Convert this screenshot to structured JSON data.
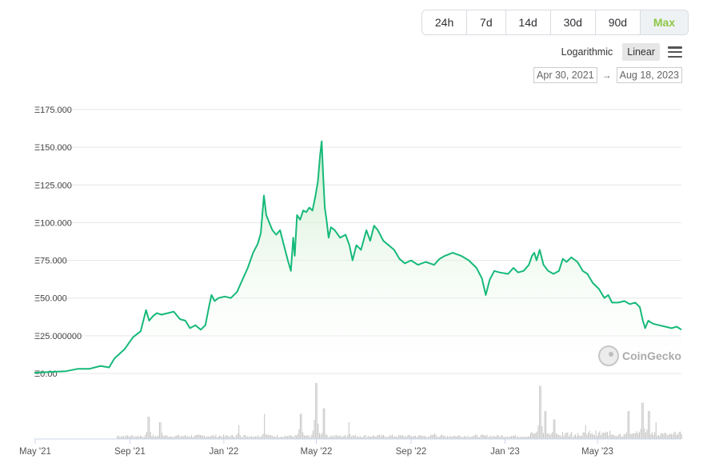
{
  "controls": {
    "ranges": [
      {
        "label": "24h",
        "active": false
      },
      {
        "label": "7d",
        "active": false
      },
      {
        "label": "14d",
        "active": false
      },
      {
        "label": "30d",
        "active": false
      },
      {
        "label": "90d",
        "active": false
      },
      {
        "label": "Max",
        "active": true
      }
    ],
    "scale_log": "Logarithmic",
    "scale_linear": "Linear",
    "date_from": "Apr 30, 2021",
    "date_arrow": "→",
    "date_to": "Aug 18, 2023"
  },
  "watermark": "CoinGecko",
  "colors": {
    "line": "#16b979",
    "fill_top": "#c9ecc9",
    "volume": "#c8c8c8",
    "active_range": "#8dc647"
  },
  "chart_data": {
    "type": "area",
    "ytick_labels": [
      "Ξ0.00",
      "Ξ25.000000",
      "Ξ50.000",
      "Ξ75.000",
      "Ξ100.000",
      "Ξ125.000",
      "Ξ150.000",
      "Ξ175.000"
    ],
    "ytick_values": [
      0,
      25,
      50,
      75,
      100,
      125,
      150,
      175
    ],
    "ylim": [
      0,
      175
    ],
    "xtick_labels": [
      "May '21",
      "Sep '21",
      "Jan '22",
      "May '22",
      "Sep '22",
      "Jan '23",
      "May '23"
    ],
    "xtick_dates": [
      "2021-05-01",
      "2021-09-01",
      "2022-01-01",
      "2022-05-01",
      "2022-09-01",
      "2023-01-01",
      "2023-05-01"
    ],
    "xlim": [
      "2021-04-30",
      "2023-08-18"
    ],
    "grid": true,
    "series": [
      {
        "values": [
          [
            "2021-04-30",
            0.5
          ],
          [
            "2021-05-20",
            1
          ],
          [
            "2021-06-10",
            1.5
          ],
          [
            "2021-06-25",
            3
          ],
          [
            "2021-07-10",
            3
          ],
          [
            "2021-07-25",
            5
          ],
          [
            "2021-08-05",
            4
          ],
          [
            "2021-08-12",
            10
          ],
          [
            "2021-08-25",
            16
          ],
          [
            "2021-09-05",
            24
          ],
          [
            "2021-09-15",
            28
          ],
          [
            "2021-09-22",
            42
          ],
          [
            "2021-09-26",
            35
          ],
          [
            "2021-10-01",
            38
          ],
          [
            "2021-10-06",
            40
          ],
          [
            "2021-10-12",
            39
          ],
          [
            "2021-10-20",
            40
          ],
          [
            "2021-10-28",
            41
          ],
          [
            "2021-11-05",
            36
          ],
          [
            "2021-11-12",
            35
          ],
          [
            "2021-11-18",
            30
          ],
          [
            "2021-11-25",
            32
          ],
          [
            "2021-12-02",
            29
          ],
          [
            "2021-12-08",
            32
          ],
          [
            "2021-12-13",
            45
          ],
          [
            "2021-12-16",
            52
          ],
          [
            "2021-12-20",
            48
          ],
          [
            "2021-12-25",
            50
          ],
          [
            "2022-01-02",
            51
          ],
          [
            "2022-01-10",
            50
          ],
          [
            "2022-01-18",
            54
          ],
          [
            "2022-01-25",
            62
          ],
          [
            "2022-02-01",
            70
          ],
          [
            "2022-02-08",
            80
          ],
          [
            "2022-02-14",
            86
          ],
          [
            "2022-02-18",
            93
          ],
          [
            "2022-02-22",
            118
          ],
          [
            "2022-02-25",
            105
          ],
          [
            "2022-03-01",
            100
          ],
          [
            "2022-03-05",
            95
          ],
          [
            "2022-03-10",
            92
          ],
          [
            "2022-03-15",
            95
          ],
          [
            "2022-03-20",
            85
          ],
          [
            "2022-03-25",
            75
          ],
          [
            "2022-03-29",
            68
          ],
          [
            "2022-04-01",
            90
          ],
          [
            "2022-04-03",
            78
          ],
          [
            "2022-04-06",
            105
          ],
          [
            "2022-04-10",
            102
          ],
          [
            "2022-04-14",
            108
          ],
          [
            "2022-04-18",
            107
          ],
          [
            "2022-04-22",
            110
          ],
          [
            "2022-04-26",
            108
          ],
          [
            "2022-04-30",
            118
          ],
          [
            "2022-05-03",
            127
          ],
          [
            "2022-05-06",
            145
          ],
          [
            "2022-05-08",
            154
          ],
          [
            "2022-05-10",
            130
          ],
          [
            "2022-05-12",
            110
          ],
          [
            "2022-05-14",
            103
          ],
          [
            "2022-05-17",
            90
          ],
          [
            "2022-05-20",
            97
          ],
          [
            "2022-05-25",
            95
          ],
          [
            "2022-06-01",
            90
          ],
          [
            "2022-06-08",
            92
          ],
          [
            "2022-06-13",
            85
          ],
          [
            "2022-06-17",
            75
          ],
          [
            "2022-06-22",
            85
          ],
          [
            "2022-06-28",
            82
          ],
          [
            "2022-07-05",
            95
          ],
          [
            "2022-07-10",
            88
          ],
          [
            "2022-07-15",
            98
          ],
          [
            "2022-07-20",
            95
          ],
          [
            "2022-07-27",
            88
          ],
          [
            "2022-08-03",
            85
          ],
          [
            "2022-08-10",
            82
          ],
          [
            "2022-08-17",
            76
          ],
          [
            "2022-08-24",
            73
          ],
          [
            "2022-09-01",
            75
          ],
          [
            "2022-09-10",
            72
          ],
          [
            "2022-09-20",
            74
          ],
          [
            "2022-10-01",
            72
          ],
          [
            "2022-10-08",
            76
          ],
          [
            "2022-10-15",
            78
          ],
          [
            "2022-10-25",
            80
          ],
          [
            "2022-11-05",
            78
          ],
          [
            "2022-11-15",
            75
          ],
          [
            "2022-11-25",
            70
          ],
          [
            "2022-12-02",
            63
          ],
          [
            "2022-12-07",
            52
          ],
          [
            "2022-12-12",
            62
          ],
          [
            "2022-12-18",
            68
          ],
          [
            "2022-12-25",
            67
          ],
          [
            "2023-01-05",
            66
          ],
          [
            "2023-01-12",
            70
          ],
          [
            "2023-01-18",
            67
          ],
          [
            "2023-01-25",
            68
          ],
          [
            "2023-02-01",
            72
          ],
          [
            "2023-02-05",
            78
          ],
          [
            "2023-02-08",
            80
          ],
          [
            "2023-02-11",
            75
          ],
          [
            "2023-02-15",
            82
          ],
          [
            "2023-02-20",
            72
          ],
          [
            "2023-02-26",
            68
          ],
          [
            "2023-03-05",
            66
          ],
          [
            "2023-03-12",
            68
          ],
          [
            "2023-03-17",
            76
          ],
          [
            "2023-03-22",
            74
          ],
          [
            "2023-03-28",
            77
          ],
          [
            "2023-04-05",
            74
          ],
          [
            "2023-04-12",
            68
          ],
          [
            "2023-04-18",
            66
          ],
          [
            "2023-04-25",
            60
          ],
          [
            "2023-05-03",
            56
          ],
          [
            "2023-05-10",
            50
          ],
          [
            "2023-05-15",
            52
          ],
          [
            "2023-05-20",
            47
          ],
          [
            "2023-05-28",
            47
          ],
          [
            "2023-06-05",
            48
          ],
          [
            "2023-06-12",
            46
          ],
          [
            "2023-06-19",
            47
          ],
          [
            "2023-06-25",
            44
          ],
          [
            "2023-06-29",
            35
          ],
          [
            "2023-07-02",
            30
          ],
          [
            "2023-07-06",
            35
          ],
          [
            "2023-07-12",
            33
          ],
          [
            "2023-07-20",
            32
          ],
          [
            "2023-07-28",
            31
          ],
          [
            "2023-08-05",
            30
          ],
          [
            "2023-08-12",
            31
          ],
          [
            "2023-08-18",
            29
          ]
        ]
      }
    ],
    "volume": {
      "type": "bar",
      "seed": 7,
      "spikes": [
        [
          "2021-09-25",
          0.4
        ],
        [
          "2021-10-10",
          0.3
        ],
        [
          "2022-01-20",
          0.25
        ],
        [
          "2022-02-22",
          0.45
        ],
        [
          "2022-04-10",
          0.45
        ],
        [
          "2022-04-30",
          1.0
        ],
        [
          "2022-05-10",
          0.55
        ],
        [
          "2022-06-12",
          0.3
        ],
        [
          "2022-10-01",
          0.1
        ],
        [
          "2023-02-15",
          0.95
        ],
        [
          "2023-02-22",
          0.5
        ],
        [
          "2023-03-05",
          0.35
        ],
        [
          "2023-04-15",
          0.25
        ],
        [
          "2023-06-10",
          0.5
        ],
        [
          "2023-06-28",
          0.65
        ],
        [
          "2023-07-06",
          0.5
        ],
        [
          "2023-07-15",
          0.3
        ]
      ]
    }
  }
}
